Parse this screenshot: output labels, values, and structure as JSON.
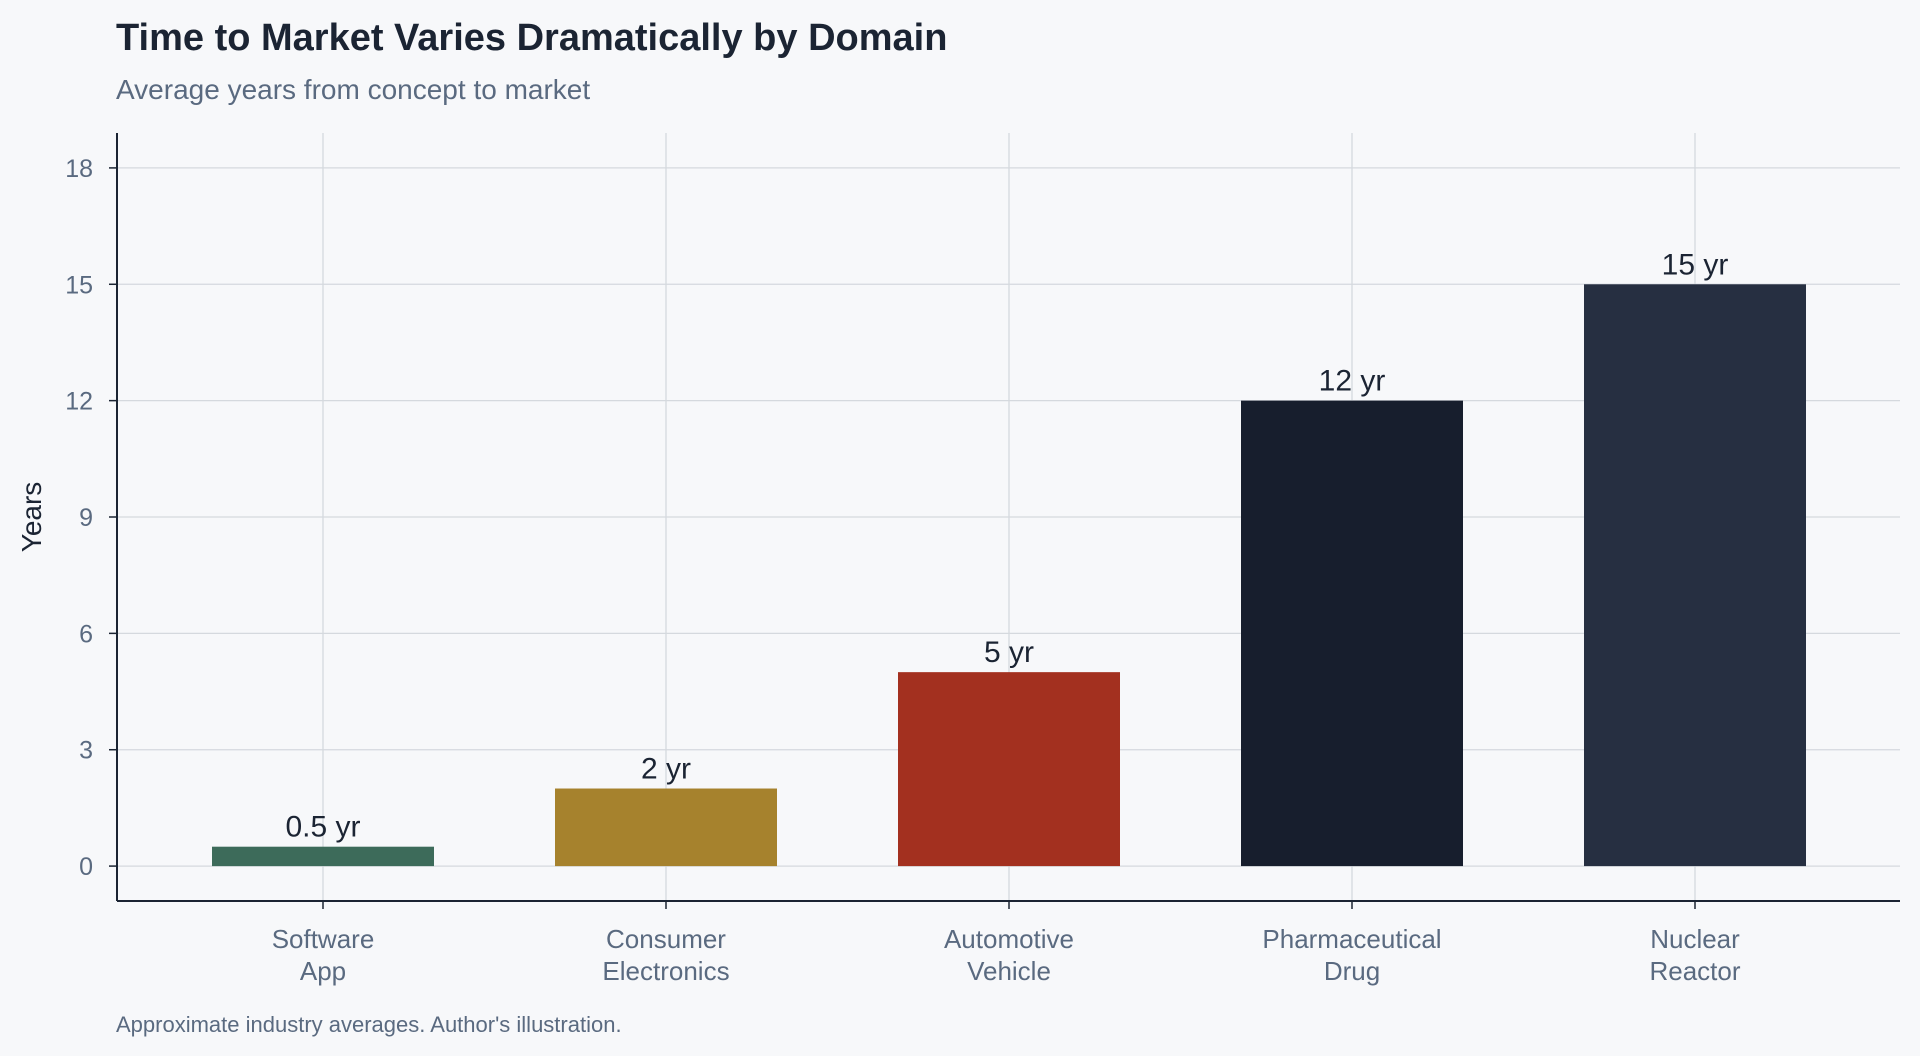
{
  "chart_data": {
    "type": "bar",
    "title": "Time to Market Varies Dramatically by Domain",
    "subtitle": "Average years from concept to market",
    "ylabel": "Years",
    "xlabel": "",
    "categories": [
      [
        "Software",
        "App"
      ],
      [
        "Consumer",
        "Electronics"
      ],
      [
        "Automotive",
        "Vehicle"
      ],
      [
        "Pharmaceutical",
        "Drug"
      ],
      [
        "Nuclear",
        "Reactor"
      ]
    ],
    "values": [
      0.5,
      2,
      5,
      12,
      15
    ],
    "data_labels": [
      "0.5 yr",
      "2 yr",
      "5 yr",
      "12 yr",
      "15 yr"
    ],
    "colors": [
      "#3d6b5a",
      "#a6822d",
      "#a3301f",
      "#171e2d",
      "#262f41"
    ],
    "ylim": [
      -0.9,
      18.9
    ],
    "yticks": [
      0,
      3,
      6,
      9,
      12,
      15,
      18
    ],
    "grid": true,
    "caption": "Approximate industry averages. Author's illustration."
  }
}
